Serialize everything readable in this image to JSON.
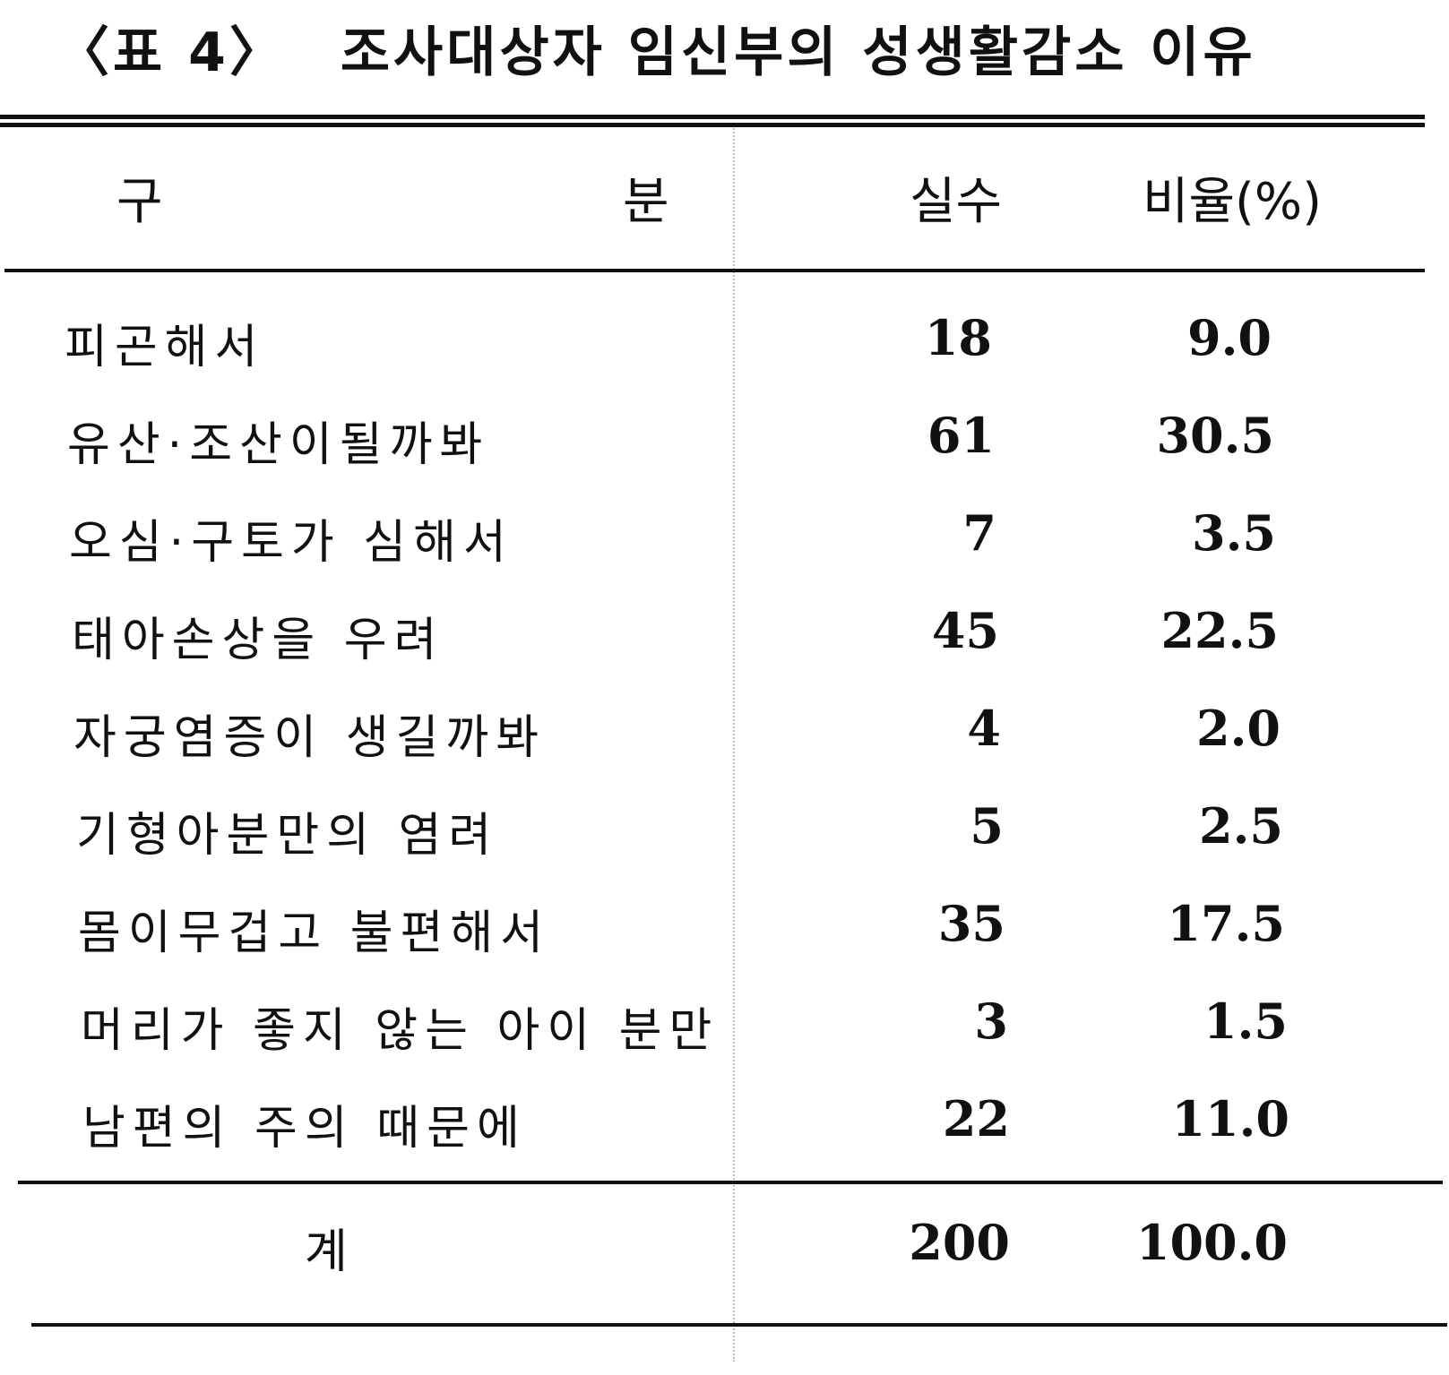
{
  "title": {
    "number": "〈표 4〉",
    "text": "조사대상자 임신부의 성생활감소 이유"
  },
  "header": {
    "category_left": "구",
    "category_right": "분",
    "count": "실수",
    "percent": "비율(%)"
  },
  "rows": [
    {
      "label": "피곤해서",
      "count": "18",
      "percent": "9.0"
    },
    {
      "label": "유산·조산이될까봐",
      "count": "61",
      "percent": "30.5"
    },
    {
      "label": "오심·구토가 심해서",
      "count": "7",
      "percent": "3.5"
    },
    {
      "label": "태아손상을 우려",
      "count": "45",
      "percent": "22.5"
    },
    {
      "label": "자궁염증이 생길까봐",
      "count": "4",
      "percent": "2.0"
    },
    {
      "label": "기형아분만의 염려",
      "count": "5",
      "percent": "2.5"
    },
    {
      "label": "몸이무겁고 불편해서",
      "count": "35",
      "percent": "17.5"
    },
    {
      "label": "머리가 좋지 않는 아이 분만",
      "count": "3",
      "percent": "1.5"
    },
    {
      "label": "남편의 주의 때문에",
      "count": "22",
      "percent": "11.0"
    }
  ],
  "total": {
    "label": "계",
    "count": "200",
    "percent": "100.0"
  }
}
